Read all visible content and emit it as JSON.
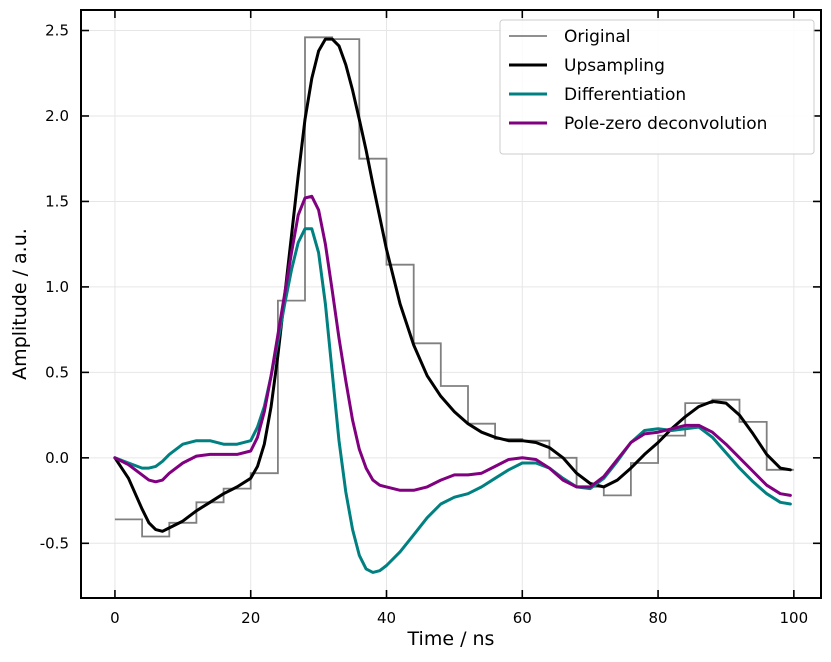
{
  "chart_data": {
    "type": "line",
    "title": "",
    "xlabel": "Time / ns",
    "ylabel": "Amplitude / a.u.",
    "xlim": [
      -5,
      104
    ],
    "ylim": [
      -0.82,
      2.62
    ],
    "grid": true,
    "legend_position": "top-right",
    "x_ticks": [
      0,
      20,
      40,
      60,
      80,
      100
    ],
    "x_tick_labels": [
      "0",
      "20",
      "40",
      "60",
      "80",
      "100"
    ],
    "y_ticks": [
      -0.5,
      0.0,
      0.5,
      1.0,
      1.5,
      2.0,
      2.5
    ],
    "y_tick_labels": [
      "-0.5",
      "0.0",
      "0.5",
      "1.0",
      "1.5",
      "2.0",
      "2.5"
    ],
    "series": [
      {
        "name": "Original",
        "style": "step",
        "color": "#808080",
        "step_edges": [
          0,
          4,
          8,
          12,
          16,
          20,
          24,
          28,
          32,
          36,
          40,
          44,
          48,
          52,
          56,
          60,
          64,
          68,
          72,
          76,
          80,
          84,
          88,
          92,
          96,
          100
        ],
        "step_values": [
          -0.36,
          -0.46,
          -0.38,
          -0.26,
          -0.18,
          -0.09,
          0.92,
          2.46,
          2.45,
          1.75,
          1.13,
          0.67,
          0.42,
          0.2,
          0.11,
          0.1,
          0.0,
          -0.17,
          -0.22,
          -0.03,
          0.13,
          0.32,
          0.34,
          0.21,
          -0.07
        ]
      },
      {
        "name": "Upsampling",
        "style": "line",
        "color": "#000000",
        "x": [
          0,
          2,
          4,
          5,
          6,
          7,
          8,
          10,
          12,
          14,
          16,
          18,
          20,
          21,
          22,
          23,
          24,
          25,
          26,
          27,
          28,
          29,
          30,
          31,
          32,
          33,
          34,
          35,
          36,
          37,
          38,
          40,
          42,
          44,
          46,
          48,
          50,
          52,
          54,
          56,
          58,
          60,
          62,
          64,
          66,
          68,
          70,
          72,
          74,
          76,
          78,
          80,
          82,
          84,
          86,
          88,
          90,
          92,
          94,
          96,
          98,
          99.5
        ],
        "y": [
          0.0,
          -0.12,
          -0.3,
          -0.38,
          -0.42,
          -0.43,
          -0.41,
          -0.37,
          -0.31,
          -0.26,
          -0.21,
          -0.17,
          -0.12,
          -0.05,
          0.08,
          0.3,
          0.6,
          0.95,
          1.3,
          1.65,
          1.98,
          2.22,
          2.38,
          2.45,
          2.45,
          2.41,
          2.3,
          2.15,
          1.98,
          1.8,
          1.6,
          1.22,
          0.9,
          0.66,
          0.48,
          0.36,
          0.27,
          0.2,
          0.15,
          0.12,
          0.1,
          0.1,
          0.09,
          0.06,
          0.0,
          -0.09,
          -0.15,
          -0.17,
          -0.13,
          -0.06,
          0.02,
          0.09,
          0.17,
          0.24,
          0.3,
          0.33,
          0.32,
          0.25,
          0.14,
          0.02,
          -0.06,
          -0.07
        ]
      },
      {
        "name": "Differentiation",
        "style": "line",
        "color": "#008080",
        "x": [
          0,
          2,
          4,
          5,
          6,
          7,
          8,
          10,
          12,
          14,
          16,
          18,
          20,
          21,
          22,
          23,
          24,
          25,
          26,
          27,
          28,
          29,
          30,
          31,
          32,
          33,
          34,
          35,
          36,
          37,
          38,
          39,
          40,
          42,
          44,
          46,
          48,
          50,
          52,
          54,
          56,
          58,
          60,
          62,
          64,
          66,
          68,
          70,
          72,
          74,
          76,
          78,
          80,
          82,
          84,
          86,
          88,
          90,
          92,
          94,
          96,
          98,
          99.5
        ],
        "y": [
          0.0,
          -0.03,
          -0.06,
          -0.06,
          -0.05,
          -0.02,
          0.02,
          0.08,
          0.1,
          0.1,
          0.08,
          0.08,
          0.1,
          0.18,
          0.3,
          0.48,
          0.68,
          0.9,
          1.1,
          1.26,
          1.34,
          1.34,
          1.2,
          0.9,
          0.5,
          0.1,
          -0.2,
          -0.42,
          -0.57,
          -0.65,
          -0.67,
          -0.66,
          -0.63,
          -0.55,
          -0.45,
          -0.35,
          -0.27,
          -0.23,
          -0.21,
          -0.17,
          -0.12,
          -0.07,
          -0.03,
          -0.03,
          -0.06,
          -0.12,
          -0.17,
          -0.18,
          -0.12,
          -0.02,
          0.09,
          0.16,
          0.17,
          0.16,
          0.17,
          0.18,
          0.12,
          0.03,
          -0.06,
          -0.14,
          -0.21,
          -0.26,
          -0.27
        ]
      },
      {
        "name": "Pole-zero deconvolution",
        "style": "line",
        "color": "#800080",
        "x": [
          0,
          2,
          4,
          5,
          6,
          7,
          8,
          10,
          12,
          14,
          16,
          18,
          20,
          21,
          22,
          23,
          24,
          25,
          26,
          27,
          28,
          29,
          30,
          31,
          32,
          33,
          34,
          35,
          36,
          37,
          38,
          39,
          40,
          42,
          44,
          46,
          48,
          50,
          52,
          54,
          56,
          58,
          60,
          62,
          64,
          66,
          68,
          70,
          72,
          74,
          76,
          78,
          80,
          82,
          84,
          86,
          88,
          90,
          92,
          94,
          96,
          98,
          99.5
        ],
        "y": [
          0.0,
          -0.04,
          -0.1,
          -0.13,
          -0.14,
          -0.13,
          -0.09,
          -0.03,
          0.01,
          0.02,
          0.02,
          0.02,
          0.04,
          0.12,
          0.27,
          0.48,
          0.72,
          0.96,
          1.2,
          1.42,
          1.52,
          1.53,
          1.45,
          1.25,
          0.98,
          0.7,
          0.45,
          0.22,
          0.05,
          -0.06,
          -0.13,
          -0.16,
          -0.17,
          -0.19,
          -0.19,
          -0.17,
          -0.13,
          -0.1,
          -0.1,
          -0.09,
          -0.05,
          -0.01,
          0.0,
          -0.01,
          -0.06,
          -0.13,
          -0.17,
          -0.17,
          -0.11,
          -0.01,
          0.09,
          0.14,
          0.15,
          0.17,
          0.19,
          0.19,
          0.15,
          0.08,
          0.0,
          -0.08,
          -0.16,
          -0.21,
          -0.22
        ]
      }
    ]
  }
}
